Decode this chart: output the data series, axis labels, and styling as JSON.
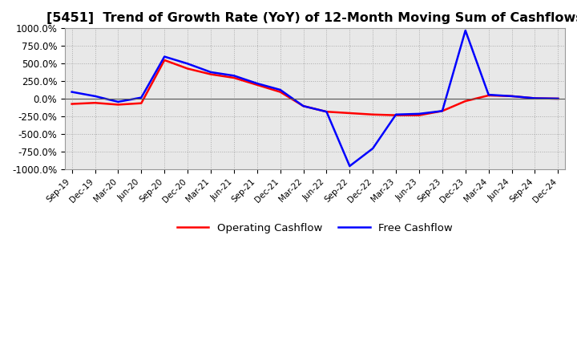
{
  "title": "[5451]  Trend of Growth Rate (YoY) of 12-Month Moving Sum of Cashflows",
  "title_fontsize": 11.5,
  "ylim": [
    -1000,
    1000
  ],
  "yticks": [
    -1000,
    -750,
    -500,
    -250,
    0,
    250,
    500,
    750,
    1000
  ],
  "yticklabels": [
    "-1000.0%",
    "-750.0%",
    "-500.0%",
    "-250.0%",
    "0.0%",
    "250.0%",
    "500.0%",
    "750.0%",
    "1000.0%"
  ],
  "operating_color": "#ff0000",
  "free_color": "#0000ff",
  "background_color": "#ffffff",
  "plot_background": "#e8e8e8",
  "xtick_labels": [
    "Sep-19",
    "Dec-19",
    "Mar-20",
    "Jun-20",
    "Sep-20",
    "Dec-20",
    "Mar-21",
    "Jun-21",
    "Sep-21",
    "Dec-21",
    "Mar-22",
    "Jun-22",
    "Sep-22",
    "Dec-22",
    "Mar-23",
    "Jun-23",
    "Sep-23",
    "Dec-23",
    "Mar-24",
    "Jun-24",
    "Sep-24",
    "Dec-24"
  ],
  "operating_cashflow": [
    -70,
    -55,
    -80,
    -60,
    550,
    430,
    350,
    300,
    200,
    100,
    -100,
    -180,
    -200,
    -220,
    -230,
    -230,
    -170,
    -30,
    50,
    40,
    10,
    5
  ],
  "free_cashflow": [
    100,
    40,
    -40,
    20,
    600,
    500,
    380,
    330,
    220,
    130,
    -100,
    -180,
    -950,
    -700,
    -220,
    -210,
    -170,
    970,
    60,
    40,
    10,
    5
  ]
}
